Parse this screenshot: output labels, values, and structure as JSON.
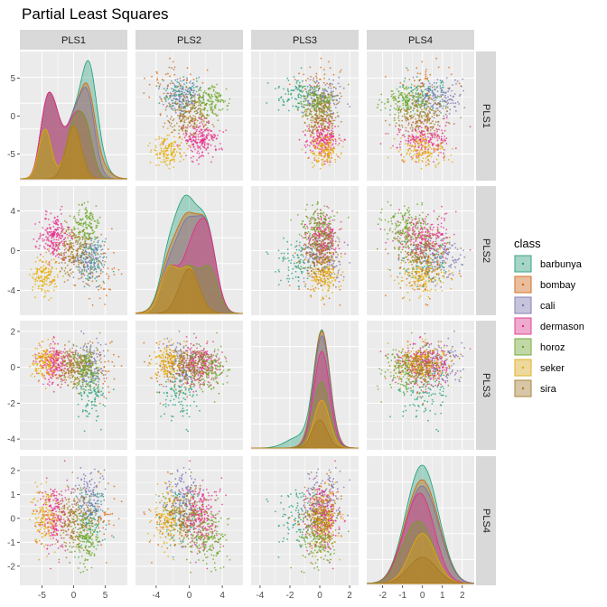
{
  "chart_data": {
    "type": "scatter-matrix",
    "title": "Partial Least Squares",
    "variables": [
      "PLS1",
      "PLS2",
      "PLS3",
      "PLS4"
    ],
    "axes": {
      "PLS1": {
        "range": [
          -8.5,
          8.5
        ],
        "x_ticks": [
          -5,
          0,
          5
        ],
        "y_ticks": [
          -5,
          0,
          5
        ]
      },
      "PLS2": {
        "range": [
          -6.5,
          6.5
        ],
        "x_ticks": [
          -4,
          0,
          4
        ],
        "y_ticks": [
          -4,
          0,
          4
        ]
      },
      "PLS3": {
        "range": [
          -4.6,
          2.6
        ],
        "x_ticks": [
          -4,
          -2,
          0,
          2
        ],
        "y_ticks": [
          -4,
          -2,
          0,
          2
        ]
      },
      "PLS4": {
        "range": [
          -2.8,
          2.6
        ],
        "x_ticks": [
          -2,
          -1,
          0,
          1,
          2
        ],
        "y_ticks": [
          -2,
          -1,
          0,
          1,
          2
        ]
      }
    },
    "legend": {
      "title": "class",
      "position": "right",
      "entries": [
        "barbunya",
        "bombay",
        "cali",
        "dermason",
        "horoz",
        "seker",
        "sira"
      ]
    },
    "class_colors": {
      "barbunya": "#1b9e77",
      "bombay": "#d95f02",
      "cali": "#7570b3",
      "dermason": "#e7298a",
      "horoz": "#66a61e",
      "seker": "#e6ab02",
      "sira": "#a6761d"
    },
    "class_means": {
      "barbunya": [
        3.0,
        -1.0,
        -1.5,
        0.0
      ],
      "bombay": [
        4.0,
        -2.0,
        0.0,
        0.0
      ],
      "cali": [
        2.5,
        -0.8,
        0.2,
        0.8
      ],
      "dermason": [
        -3.0,
        1.5,
        0.2,
        0.0
      ],
      "horoz": [
        2.0,
        2.5,
        0.0,
        -0.8
      ],
      "seker": [
        -4.5,
        -2.5,
        0.3,
        0.0
      ],
      "sira": [
        0.0,
        0.0,
        0.0,
        0.0
      ]
    },
    "class_sd": {
      "barbunya": [
        1.2,
        1.5,
        0.8,
        0.7
      ],
      "bombay": [
        1.5,
        1.8,
        0.8,
        0.8
      ],
      "cali": [
        1.2,
        1.0,
        0.6,
        0.6
      ],
      "dermason": [
        1.2,
        1.2,
        0.5,
        0.7
      ],
      "horoz": [
        1.1,
        1.0,
        0.6,
        0.6
      ],
      "seker": [
        1.0,
        1.0,
        0.5,
        0.6
      ],
      "sira": [
        1.2,
        1.2,
        0.5,
        0.7
      ]
    },
    "class_relative_size": {
      "barbunya": 0.5,
      "bombay": 0.25,
      "cali": 0.6,
      "dermason": 1.0,
      "horoz": 0.7,
      "seker": 0.7,
      "sira": 0.9
    },
    "diagonal": "stacked density",
    "off_diagonal": "scatter",
    "grid": true
  }
}
